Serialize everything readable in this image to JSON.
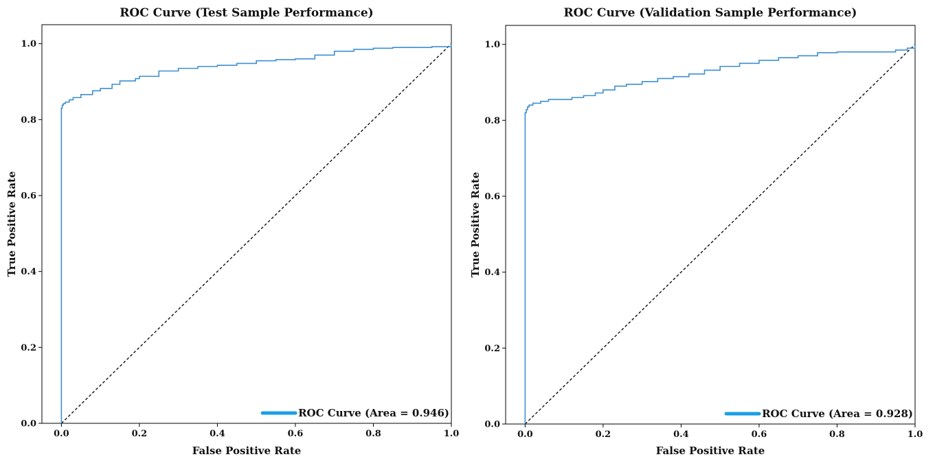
{
  "chart_data": [
    {
      "type": "line",
      "title": "ROC Curve (Test Sample Performance)",
      "xlabel": "False Positive Rate",
      "ylabel": "True Positive Rate",
      "xlim": [
        -0.05,
        1.0
      ],
      "ylim": [
        0.0,
        1.05
      ],
      "xticks": [
        "0.0",
        "0.2",
        "0.4",
        "0.6",
        "0.8",
        "1.0"
      ],
      "yticks": [
        "0.0",
        "0.2",
        "0.4",
        "0.6",
        "0.8",
        "1.0"
      ],
      "grid": false,
      "legend_position": "lower-right",
      "colors": {
        "roc": "#3d8fd1",
        "legend_line": "#1a9ee6",
        "diagonal": "#000000"
      },
      "series": [
        {
          "name": "ROC Curve (Area = 0.946)",
          "style": "step",
          "x": [
            0.0,
            0.0,
            0.002,
            0.005,
            0.01,
            0.02,
            0.03,
            0.05,
            0.08,
            0.1,
            0.13,
            0.15,
            0.19,
            0.2,
            0.25,
            0.3,
            0.35,
            0.4,
            0.45,
            0.5,
            0.55,
            0.6,
            0.65,
            0.7,
            0.75,
            0.8,
            0.85,
            0.9,
            0.95,
            1.0
          ],
          "y": [
            0.0,
            0.83,
            0.838,
            0.842,
            0.846,
            0.852,
            0.858,
            0.866,
            0.876,
            0.882,
            0.893,
            0.902,
            0.908,
            0.914,
            0.928,
            0.935,
            0.94,
            0.943,
            0.948,
            0.955,
            0.958,
            0.96,
            0.97,
            0.98,
            0.985,
            0.988,
            0.99,
            0.99,
            0.992,
            1.0
          ]
        },
        {
          "name": "",
          "style": "dashed",
          "x": [
            0.0,
            1.0
          ],
          "y": [
            0.0,
            1.0
          ]
        }
      ]
    },
    {
      "type": "line",
      "title": "ROC Curve (Validation Sample Performance)",
      "xlabel": "False Positive Rate",
      "ylabel": "True Positive Rate",
      "xlim": [
        -0.05,
        1.0
      ],
      "ylim": [
        0.0,
        1.05
      ],
      "xticks": [
        "0.0",
        "0.2",
        "0.4",
        "0.6",
        "0.8",
        "1.0"
      ],
      "yticks": [
        "0.0",
        "0.2",
        "0.4",
        "0.6",
        "0.8",
        "1.0"
      ],
      "grid": false,
      "legend_position": "lower-right",
      "colors": {
        "roc": "#3d8fd1",
        "legend_line": "#1a9ee6",
        "diagonal": "#000000"
      },
      "series": [
        {
          "name": "ROC Curve (Area = 0.928)",
          "style": "step",
          "x": [
            0.0,
            0.0,
            0.003,
            0.006,
            0.01,
            0.02,
            0.04,
            0.06,
            0.09,
            0.12,
            0.15,
            0.18,
            0.2,
            0.23,
            0.26,
            0.3,
            0.34,
            0.38,
            0.42,
            0.46,
            0.5,
            0.55,
            0.6,
            0.65,
            0.7,
            0.75,
            0.8,
            0.85,
            0.9,
            0.95,
            0.98,
            1.0
          ],
          "y": [
            0.0,
            0.82,
            0.828,
            0.835,
            0.84,
            0.845,
            0.85,
            0.855,
            0.855,
            0.86,
            0.865,
            0.872,
            0.88,
            0.89,
            0.895,
            0.902,
            0.91,
            0.915,
            0.922,
            0.932,
            0.942,
            0.95,
            0.958,
            0.965,
            0.97,
            0.978,
            0.98,
            0.98,
            0.98,
            0.985,
            0.99,
            1.0
          ]
        },
        {
          "name": "",
          "style": "dashed",
          "x": [
            0.0,
            1.0
          ],
          "y": [
            0.0,
            1.0
          ]
        }
      ]
    }
  ]
}
